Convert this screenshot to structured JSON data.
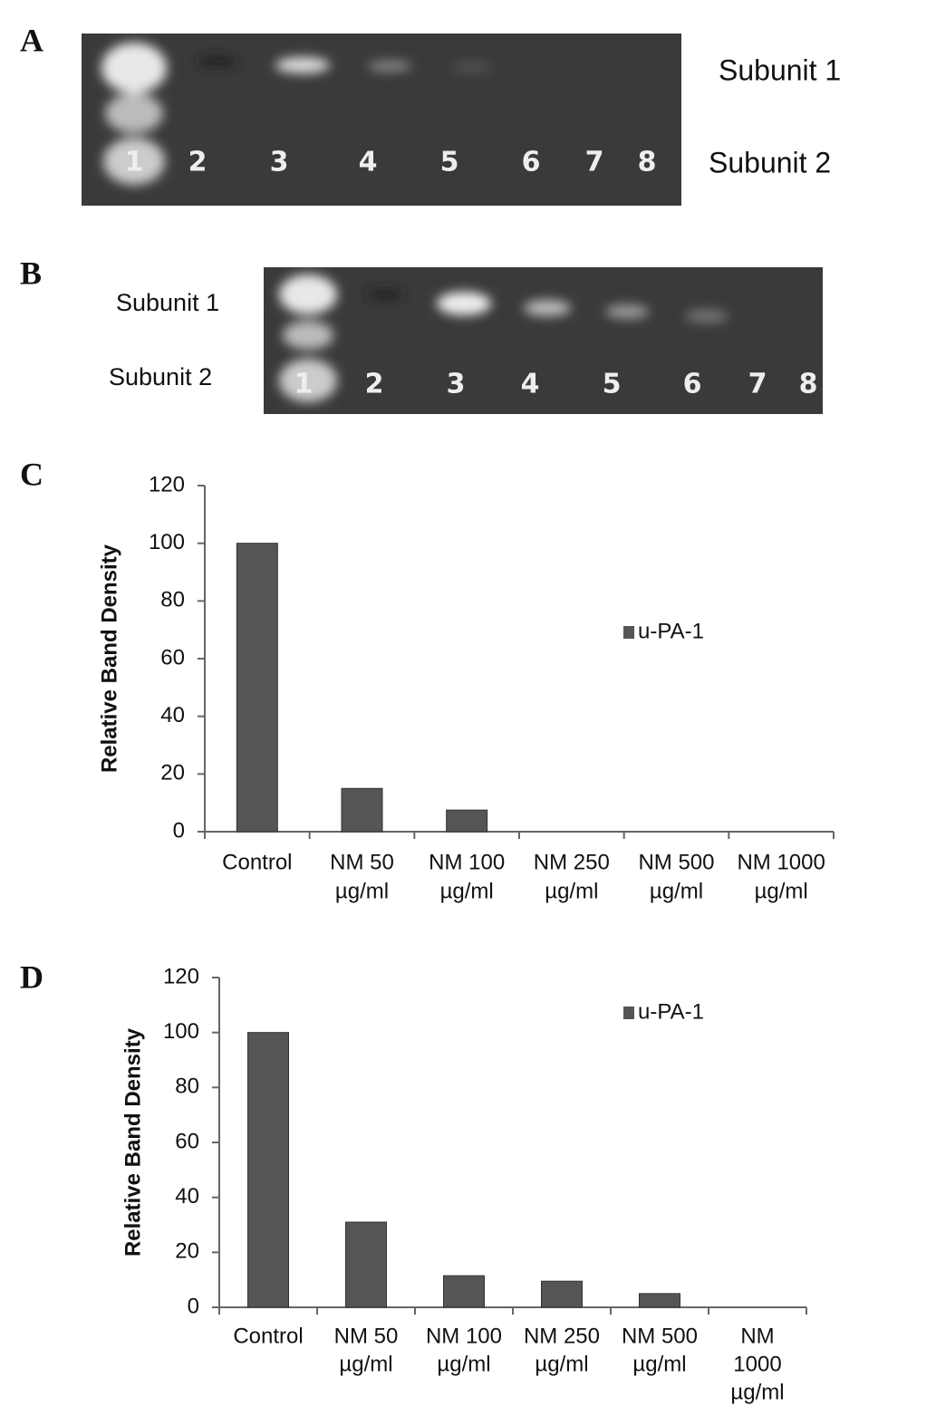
{
  "panel_labels": [
    "A",
    "B",
    "C",
    "D"
  ],
  "gels": [
    {
      "subunit_labels": [
        "Subunit 1",
        "Subunit 2"
      ],
      "lanes": [
        "1",
        "2",
        "3",
        "4",
        "5",
        "6",
        "7",
        "8"
      ]
    },
    {
      "subunit_labels": [
        "Subunit 1",
        "Subunit 2"
      ],
      "lanes": [
        "1",
        "2",
        "3",
        "4",
        "5",
        "6",
        "7",
        "8"
      ]
    }
  ],
  "chart_data": [
    {
      "type": "bar",
      "y_label": "Relative Band Density",
      "categories": [
        [
          "Control"
        ],
        [
          "NM 50",
          "µg/ml"
        ],
        [
          "NM 100",
          "µg/ml"
        ],
        [
          "NM 250",
          "µg/ml"
        ],
        [
          "NM 500",
          "µg/ml"
        ],
        [
          "NM 1000",
          "µg/ml"
        ]
      ],
      "series": [
        {
          "name": "u-PA-1",
          "color": "#555555",
          "values": [
            100,
            15,
            7.5,
            0,
            0,
            0
          ]
        }
      ],
      "ylim": [
        0,
        120
      ],
      "yticks": [
        0,
        20,
        40,
        60,
        80,
        100,
        120
      ]
    },
    {
      "type": "bar",
      "y_label": "Relative Band Density",
      "categories": [
        [
          "Control"
        ],
        [
          "NM 50",
          "µg/ml"
        ],
        [
          "NM 100",
          "µg/ml"
        ],
        [
          "NM 250",
          "µg/ml"
        ],
        [
          "NM 500",
          "µg/ml"
        ],
        [
          "NM",
          "1000",
          "µg/ml"
        ]
      ],
      "series": [
        {
          "name": "u-PA-1",
          "color": "#555555",
          "values": [
            100,
            31,
            11.5,
            9.5,
            5,
            0
          ]
        }
      ],
      "ylim": [
        0,
        120
      ],
      "yticks": [
        0,
        20,
        40,
        60,
        80,
        100,
        120
      ]
    }
  ]
}
